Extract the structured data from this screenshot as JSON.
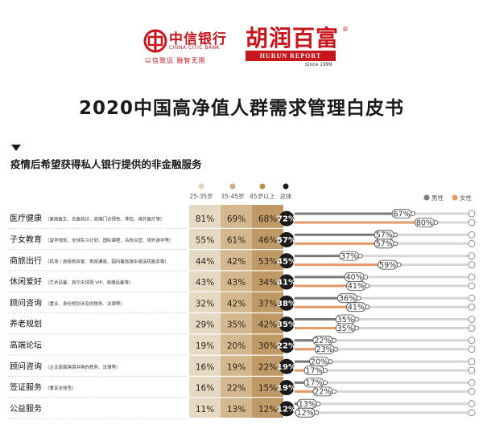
{
  "header": {
    "citic": {
      "name": "中信银行",
      "en": "CHINA CITIC BANK",
      "slogan": "以信致远 融智无限"
    },
    "hurun": {
      "name": "胡润百富",
      "en": "HURUN REPORT",
      "since": "Since 1999",
      "reg": "®"
    }
  },
  "title": "2020中国高净值人群需求管理白皮书",
  "section_title": "疫情后希望获得私人银行提供的非金融服务",
  "colors": {
    "col1": "#e3d5be",
    "col2": "#cdaf83",
    "col3": "#b88e55",
    "total": "#1b1b1b",
    "male_bar": "#7b7b7b",
    "female_bar": "#e39a67"
  },
  "chart_data": {
    "type": "table",
    "columns": [
      "25-35岁",
      "35-45岁",
      "45岁以上",
      "总体"
    ],
    "legend": [
      "男性",
      "女性"
    ],
    "rows": [
      {
        "label": "医疗健康",
        "sub": "（家庭医生、名医就诊、高端门诊绿色、体检、境外医疗等）",
        "age_25_35": 81,
        "age_35_45": 69,
        "age_45_plus": 68,
        "total": 72,
        "male": 67,
        "female": 80
      },
      {
        "label": "子女教育",
        "sub": "（留学规划、全球实习计划、国际课程、名校合营、境外游学等）",
        "age_25_35": 55,
        "age_35_45": 61,
        "age_45_plus": 46,
        "total": 57,
        "male": 57,
        "female": 57
      },
      {
        "label": "商旅出行",
        "sub": "（机场 / 高铁贵宾室、贵宾通道、国内奢高端车接送机服务等）",
        "age_25_35": 44,
        "age_35_45": 42,
        "age_45_plus": 53,
        "total": 45,
        "male": 37,
        "female": 59
      },
      {
        "label": "休闲爱好",
        "sub": "（艺术品鉴、高尔夫球场 VIP、高端品鉴等）",
        "age_25_35": 43,
        "age_35_45": 43,
        "age_45_plus": 34,
        "total": 41,
        "male": 40,
        "female": 41
      },
      {
        "label": "顾问咨询",
        "sub": "（置业、身份规划涉及的税务、法律等）",
        "age_25_35": 32,
        "age_35_45": 42,
        "age_45_plus": 37,
        "total": 38,
        "male": 36,
        "female": 41
      },
      {
        "label": "养老规划",
        "sub": "",
        "age_25_35": 29,
        "age_35_45": 35,
        "age_45_plus": 42,
        "total": 35,
        "male": 35,
        "female": 35
      },
      {
        "label": "高端论坛",
        "sub": "",
        "age_25_35": 19,
        "age_35_45": 20,
        "age_45_plus": 30,
        "total": 22,
        "male": 22,
        "female": 23
      },
      {
        "label": "顾问咨询",
        "sub": "（企业层面跨境并购的税务、法律等）",
        "age_25_35": 16,
        "age_35_45": 19,
        "age_45_plus": 22,
        "total": 19,
        "male": 20,
        "female": 17
      },
      {
        "label": "签证服务",
        "sub": "（奢享全球签）",
        "age_25_35": 16,
        "age_35_45": 22,
        "age_45_plus": 15,
        "total": 19,
        "male": 17,
        "female": 22
      },
      {
        "label": "公益服务",
        "sub": "",
        "age_25_35": 11,
        "age_35_45": 13,
        "age_45_plus": 12,
        "total": 12,
        "male": 13,
        "female": 12
      }
    ]
  }
}
